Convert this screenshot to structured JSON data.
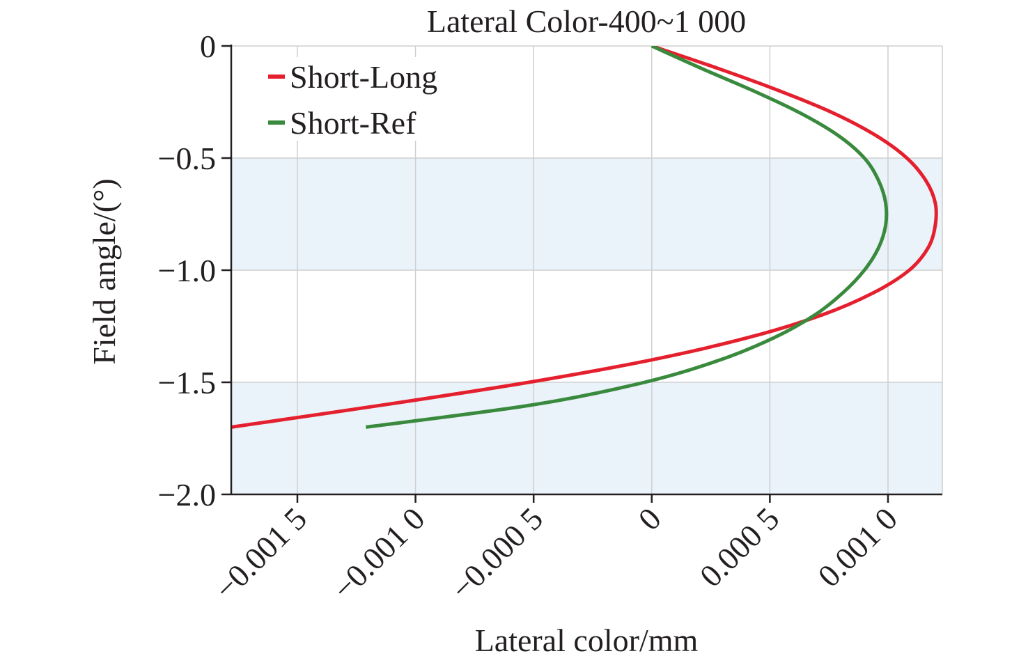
{
  "chart_data": {
    "type": "line",
    "title": "Lateral Color-400~1 000",
    "xlabel": "Lateral color/mm",
    "ylabel": "Field angle/(°)",
    "xlim": [
      -0.00178,
      0.00123
    ],
    "ylim": [
      -2.0,
      0.0
    ],
    "x_ticks": [
      -0.0015,
      -0.001,
      -0.0005,
      0,
      0.0005,
      0.001
    ],
    "x_tick_labels": [
      "−0.001 5",
      "−0.001 0",
      "−0.000 5",
      "0",
      "0.000 5",
      "0.001 0"
    ],
    "y_ticks": [
      0,
      -0.5,
      -1.0,
      -1.5,
      -2.0
    ],
    "y_tick_labels": [
      "0",
      "−0.5",
      "−1.0",
      "−1.5",
      "−2.0"
    ],
    "grid": true,
    "legend_position": "top-left",
    "shaded_bands": [
      [
        -0.5,
        -1.0
      ],
      [
        -1.5,
        -2.0
      ]
    ],
    "band_color": "#eaf2fa",
    "series": [
      {
        "name": "Short-Long",
        "color": "#e5202e",
        "x": [
          0.0,
          0.00028,
          0.00054,
          0.00077,
          0.00095,
          0.00108,
          0.00116,
          0.0012,
          0.0012,
          0.00117,
          0.00109,
          0.00094,
          0.00072,
          0.00041,
          0.0,
          -0.00052,
          -0.00113,
          -0.00178
        ],
        "y": [
          0.0,
          -0.1,
          -0.2,
          -0.3,
          -0.4,
          -0.5,
          -0.6,
          -0.7,
          -0.8,
          -0.9,
          -1.0,
          -1.1,
          -1.2,
          -1.3,
          -1.4,
          -1.5,
          -1.6,
          -1.7
        ]
      },
      {
        "name": "Short-Ref",
        "color": "#3a8a3e",
        "x": [
          0.0,
          0.00021,
          0.00043,
          0.00063,
          0.00079,
          0.0009,
          0.00096,
          0.00099,
          0.00099,
          0.00096,
          0.0009,
          0.00081,
          0.00069,
          0.00052,
          0.00029,
          -3e-05,
          -0.0005,
          -0.00121
        ],
        "y": [
          0.0,
          -0.1,
          -0.2,
          -0.3,
          -0.4,
          -0.5,
          -0.6,
          -0.7,
          -0.8,
          -0.9,
          -1.0,
          -1.1,
          -1.2,
          -1.3,
          -1.4,
          -1.5,
          -1.6,
          -1.7
        ]
      }
    ]
  }
}
